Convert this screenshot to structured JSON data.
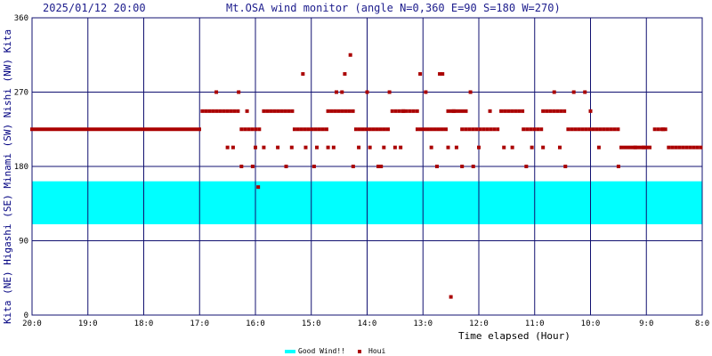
{
  "header": {
    "datetime": "2025/01/12 20:00",
    "title": "Mt.OSA wind monitor (angle N=0,360 E=90 S=180 W=270)"
  },
  "chart_data": {
    "type": "scatter",
    "title": "Mt.OSA wind monitor (angle N=0,360 E=90 S=180 W=270)",
    "xlabel": "Time elapsed (Hour)",
    "ylabel": "Kita (NE) Higashi (SE) Minami (SW) Nishi (NW) Kita",
    "ylabel_parts": [
      "Kita",
      "(NE)",
      "Higashi",
      "(SE)",
      "Minami",
      "(SW)",
      "Nishi",
      "(NW)",
      "Kita"
    ],
    "ylim": [
      0,
      360
    ],
    "yticks": [
      "0",
      "90",
      "180",
      "270",
      "360"
    ],
    "xlim": [
      20,
      8
    ],
    "xaxis_direction": "decreasing",
    "xticks": [
      "20:0",
      "19:0",
      "18:0",
      "17:0",
      "16:0",
      "15:0",
      "14:0",
      "13:0",
      "12:0",
      "11:0",
      "10:0",
      "9:0",
      "8:0"
    ],
    "grid": true,
    "good_wind_band": [
      110,
      162
    ],
    "legend_position": "bottom-center",
    "series": [
      {
        "name": "Houi",
        "color": "#aa0000",
        "segments": [
          [
            20.0,
            17.0,
            225
          ],
          [
            16.95,
            16.3,
            247
          ],
          [
            16.25,
            15.9,
            225
          ],
          [
            15.85,
            15.3,
            247
          ],
          [
            15.3,
            14.7,
            225
          ],
          [
            14.7,
            14.2,
            247
          ],
          [
            14.2,
            13.6,
            225
          ],
          [
            13.55,
            13.1,
            247
          ],
          [
            13.1,
            12.55,
            225
          ],
          [
            12.55,
            12.2,
            247
          ],
          [
            12.3,
            11.6,
            225
          ],
          [
            11.6,
            11.2,
            247
          ],
          [
            11.2,
            10.85,
            225
          ],
          [
            10.85,
            10.45,
            247
          ],
          [
            10.4,
            9.45,
            225
          ],
          [
            9.45,
            8.9,
            203
          ],
          [
            8.85,
            8.65,
            225
          ],
          [
            8.6,
            8.0,
            203
          ]
        ],
        "points": [
          [
            16.7,
            270
          ],
          [
            16.3,
            270
          ],
          [
            16.5,
            203
          ],
          [
            16.4,
            203
          ],
          [
            16.25,
            180
          ],
          [
            16.15,
            247
          ],
          [
            16.05,
            180
          ],
          [
            16.0,
            203
          ],
          [
            15.95,
            155
          ],
          [
            15.85,
            203
          ],
          [
            15.6,
            203
          ],
          [
            15.45,
            180
          ],
          [
            15.35,
            203
          ],
          [
            15.15,
            292
          ],
          [
            15.1,
            203
          ],
          [
            14.95,
            180
          ],
          [
            14.9,
            203
          ],
          [
            14.7,
            203
          ],
          [
            14.6,
            203
          ],
          [
            14.55,
            270
          ],
          [
            14.45,
            270
          ],
          [
            14.4,
            292
          ],
          [
            14.3,
            315
          ],
          [
            14.25,
            180
          ],
          [
            14.15,
            203
          ],
          [
            14.0,
            270
          ],
          [
            13.95,
            203
          ],
          [
            13.8,
            180
          ],
          [
            13.75,
            180
          ],
          [
            13.7,
            203
          ],
          [
            13.6,
            270
          ],
          [
            13.5,
            203
          ],
          [
            13.4,
            203
          ],
          [
            13.35,
            247
          ],
          [
            13.05,
            292
          ],
          [
            12.95,
            270
          ],
          [
            12.85,
            203
          ],
          [
            12.75,
            180
          ],
          [
            12.7,
            292
          ],
          [
            12.65,
            292
          ],
          [
            12.55,
            203
          ],
          [
            12.5,
            22
          ],
          [
            12.45,
            247
          ],
          [
            12.4,
            203
          ],
          [
            12.3,
            180
          ],
          [
            12.15,
            270
          ],
          [
            12.1,
            180
          ],
          [
            12.0,
            203
          ],
          [
            11.8,
            247
          ],
          [
            11.55,
            203
          ],
          [
            11.4,
            203
          ],
          [
            11.15,
            180
          ],
          [
            11.05,
            203
          ],
          [
            10.85,
            203
          ],
          [
            10.65,
            270
          ],
          [
            10.55,
            203
          ],
          [
            10.45,
            180
          ],
          [
            10.3,
            270
          ],
          [
            10.1,
            270
          ],
          [
            10.0,
            247
          ],
          [
            9.85,
            203
          ],
          [
            9.5,
            180
          ],
          [
            9.2,
            203
          ],
          [
            9.05,
            203
          ],
          [
            8.7,
            225
          ]
        ]
      }
    ]
  },
  "legend": {
    "good_label": "Good Wind!!",
    "good_color": "#00ffff",
    "houi_label": "Houi",
    "houi_color": "#aa0000"
  },
  "colors": {
    "grid": "#101070",
    "band": "#00ffff",
    "marker": "#aa0000"
  }
}
